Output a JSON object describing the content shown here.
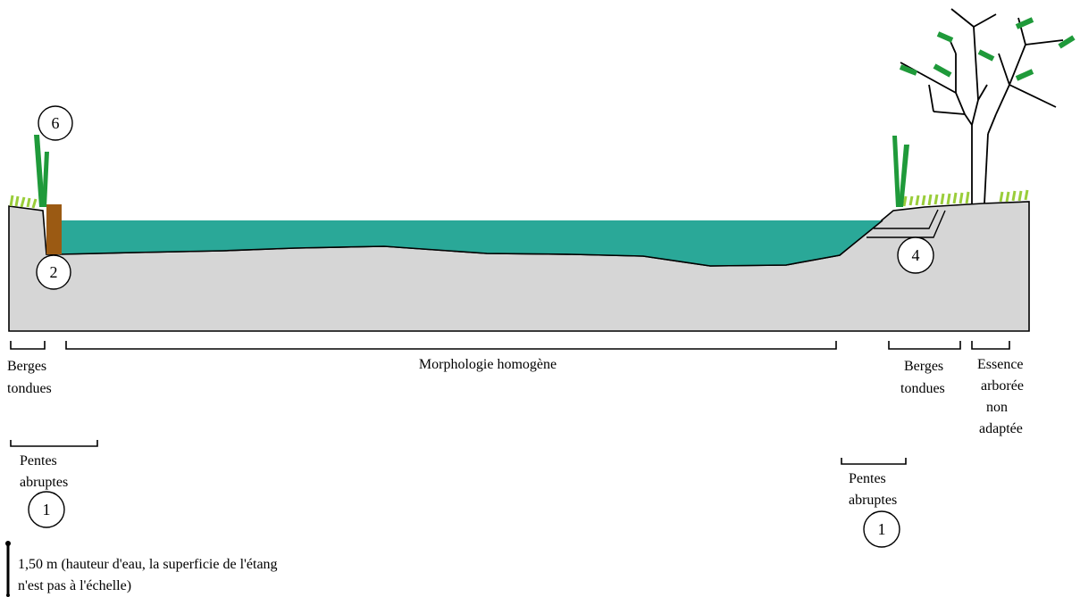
{
  "labels": {
    "berges_tondues_left": [
      "Berges",
      "tondues"
    ],
    "morphologie": "Morphologie homogène",
    "berges_tondues_right": [
      "Berges",
      "tondues"
    ],
    "essence": [
      "Essence",
      "arborée",
      "non",
      "adaptée"
    ],
    "pentes_left": [
      "Pentes",
      "abruptes"
    ],
    "pentes_right": [
      "Pentes",
      "abruptes"
    ],
    "scale_note": [
      "1,50 m (hauteur d'eau, la superficie de l'étang",
      "n'est pas à l'échelle)"
    ]
  },
  "badges": {
    "six": "6",
    "two": "2",
    "four": "4",
    "one_left": "1",
    "one_right": "1"
  },
  "colors": {
    "water": "#2aa898",
    "ground": "#d6d6d6",
    "post": "#9b5a13",
    "reed": "#1f9a3a",
    "grass": "#9acd3a",
    "leaf": "#1f9a3a"
  }
}
